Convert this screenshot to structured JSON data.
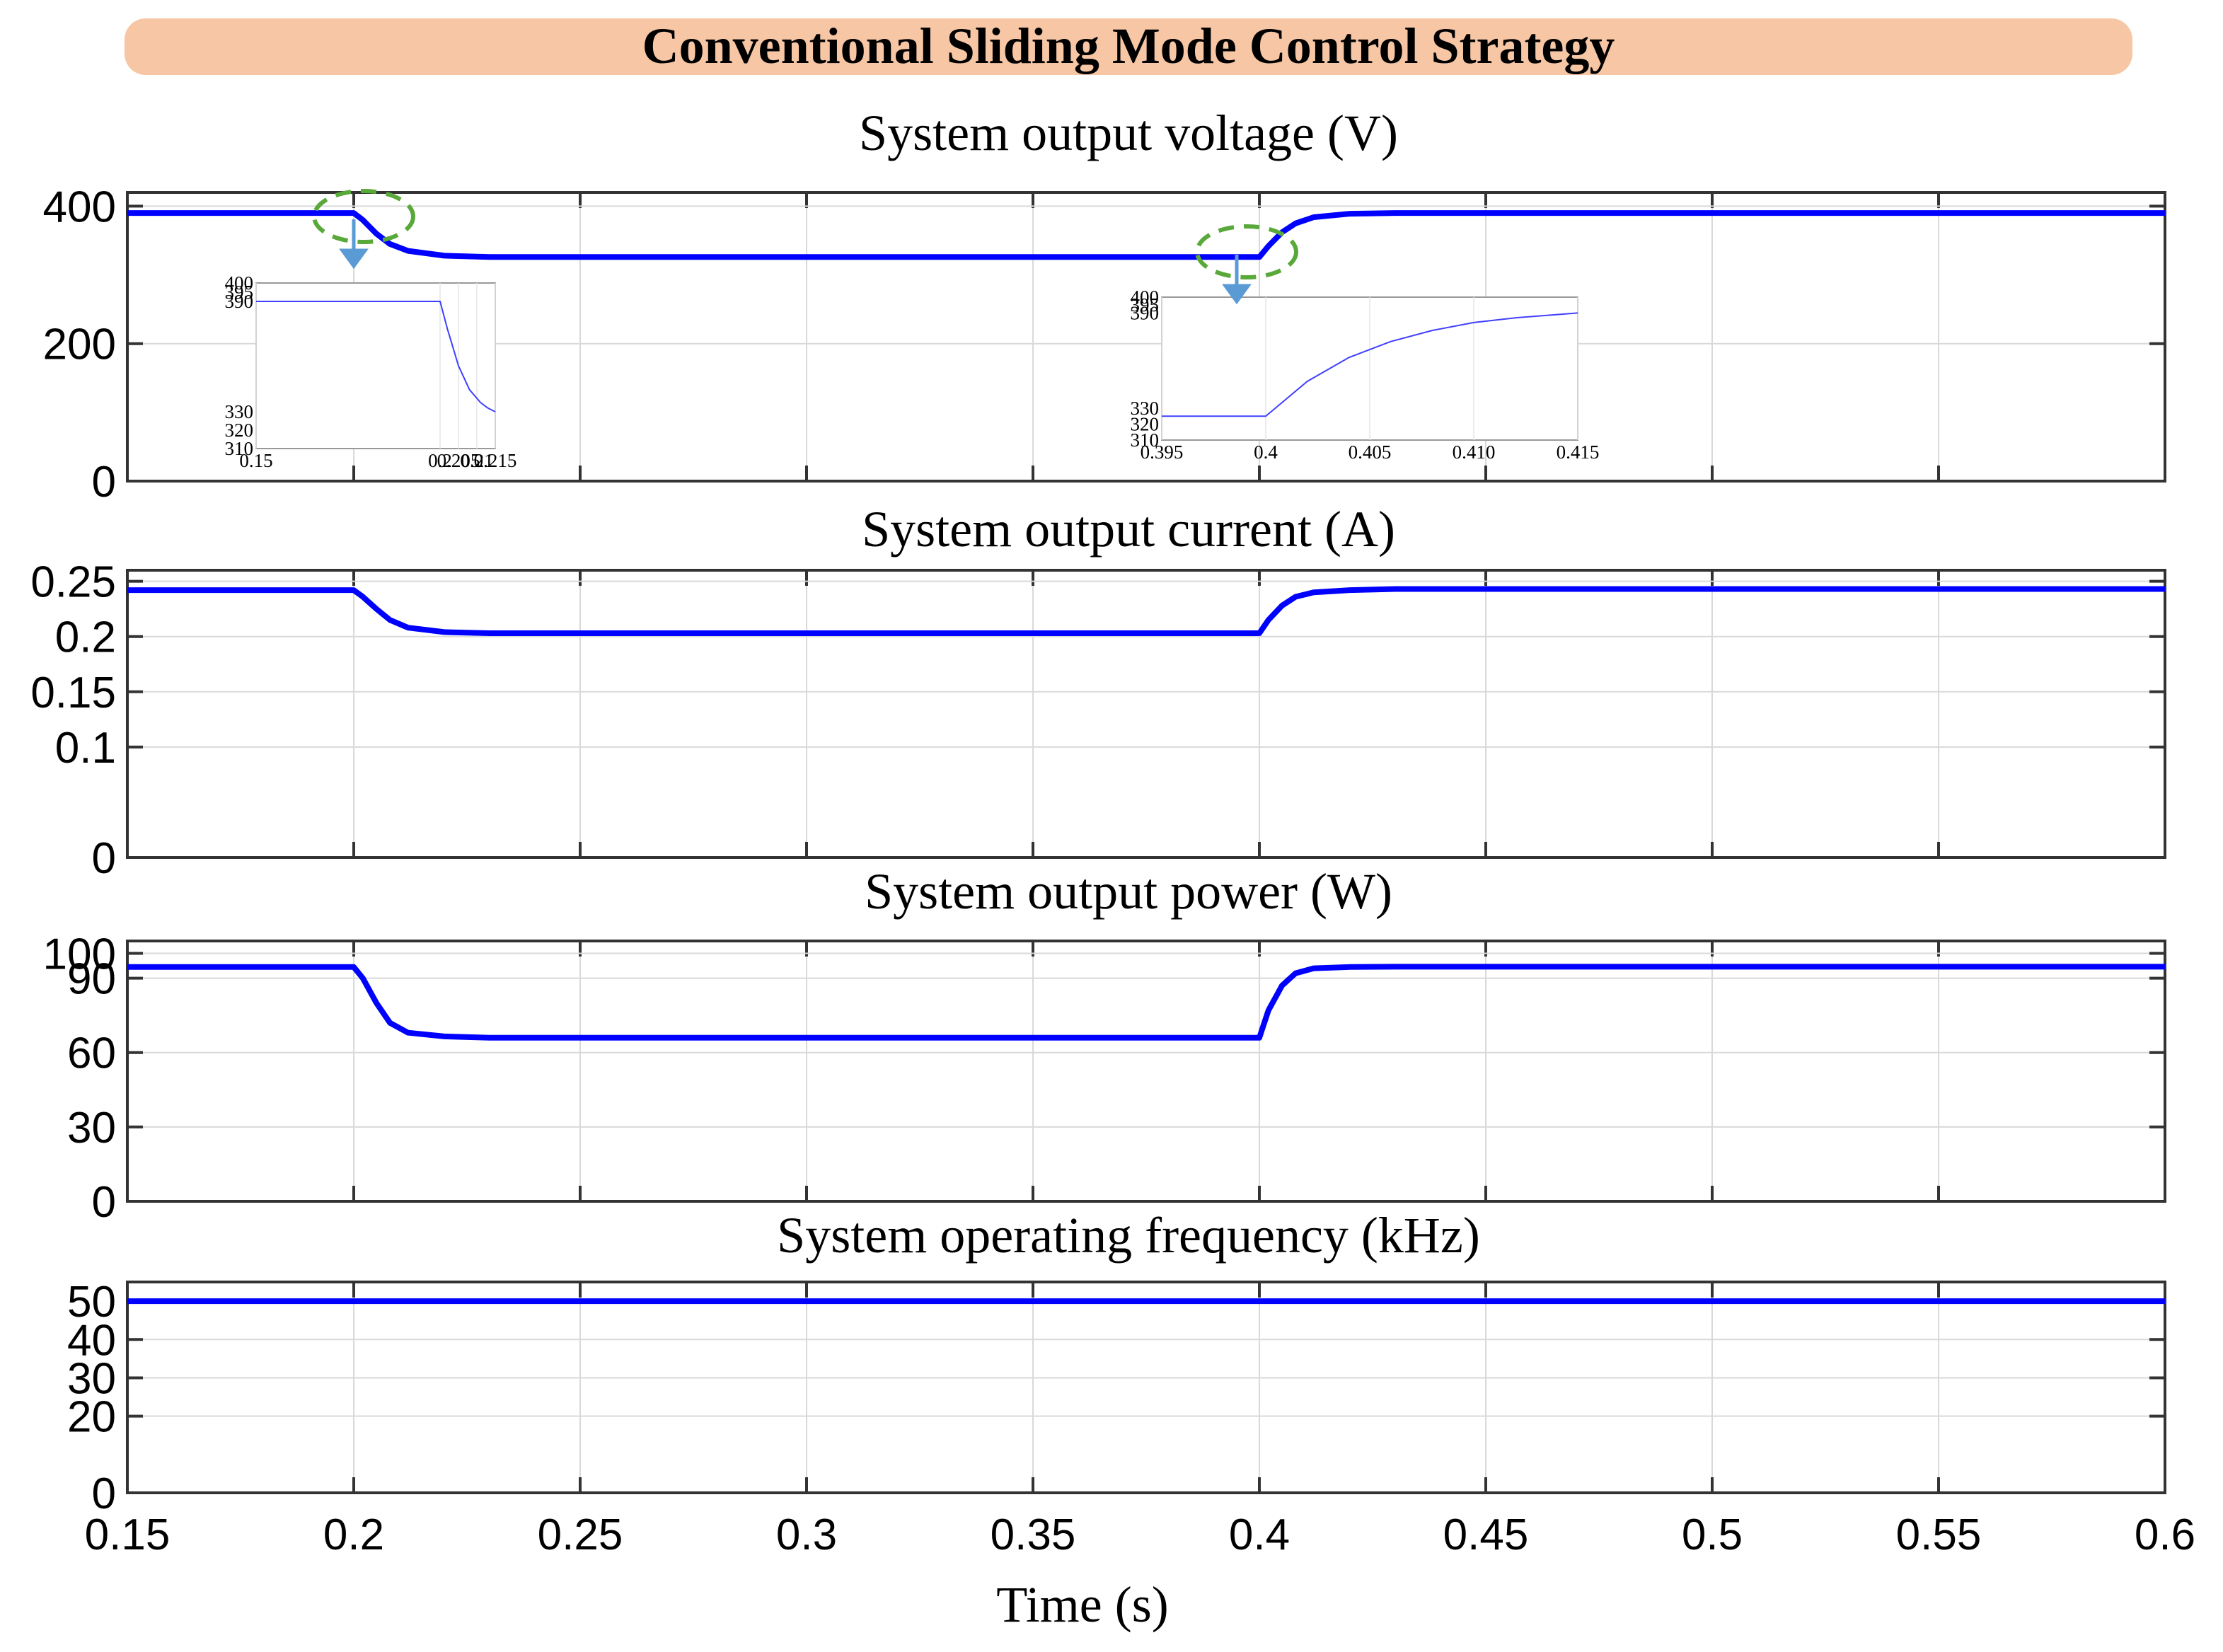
{
  "banner": {
    "title": "Conventional Sliding Mode Control Strategy",
    "color": "#f7c6a5"
  },
  "x_axis": {
    "label": "Time (s)",
    "range": [
      0.15,
      0.6
    ],
    "ticks": [
      0.15,
      0.2,
      0.25,
      0.3,
      0.35,
      0.4,
      0.45,
      0.5,
      0.55,
      0.6
    ],
    "tick_labels": [
      "0.15",
      "0.2",
      "0.25",
      "0.3",
      "0.35",
      "0.4",
      "0.45",
      "0.5",
      "0.55",
      "0.6"
    ]
  },
  "chart_data": [
    {
      "type": "line",
      "title": "System output voltage (V)",
      "ylim": [
        0,
        420
      ],
      "yticks": [
        0,
        200,
        400
      ],
      "ytick_labels": [
        "0",
        "200",
        "400"
      ],
      "grid": true,
      "series": [
        {
          "name": "Voltage",
          "color": "#0000ff",
          "x": [
            0.15,
            0.2,
            0.202,
            0.205,
            0.208,
            0.212,
            0.22,
            0.23,
            0.4,
            0.402,
            0.405,
            0.408,
            0.412,
            0.42,
            0.43,
            0.6
          ],
          "values": [
            390,
            390,
            380,
            360,
            345,
            335,
            328,
            326,
            326,
            342,
            362,
            375,
            384,
            389,
            390,
            390
          ]
        }
      ]
    },
    {
      "type": "line",
      "title": "System output current (A)",
      "ylim": [
        0,
        0.26
      ],
      "yticks": [
        0,
        0.1,
        0.15,
        0.2,
        0.25
      ],
      "ytick_labels": [
        "0",
        "0.1",
        "0.15",
        "0.2",
        "0.25"
      ],
      "grid": true,
      "series": [
        {
          "name": "Current",
          "color": "#0000ff",
          "x": [
            0.15,
            0.2,
            0.202,
            0.205,
            0.208,
            0.212,
            0.22,
            0.23,
            0.4,
            0.402,
            0.405,
            0.408,
            0.412,
            0.42,
            0.43,
            0.6
          ],
          "values": [
            0.242,
            0.242,
            0.236,
            0.225,
            0.215,
            0.208,
            0.204,
            0.203,
            0.203,
            0.215,
            0.228,
            0.236,
            0.24,
            0.242,
            0.243,
            0.243
          ]
        }
      ]
    },
    {
      "type": "line",
      "title": "System output power (W)",
      "ylim": [
        0,
        105
      ],
      "yticks": [
        0,
        30,
        60,
        90,
        100
      ],
      "ytick_labels": [
        "0",
        "30",
        "60",
        "90",
        "100"
      ],
      "grid": true,
      "series": [
        {
          "name": "Power",
          "color": "#0000ff",
          "x": [
            0.15,
            0.2,
            0.202,
            0.205,
            0.208,
            0.212,
            0.22,
            0.23,
            0.4,
            0.402,
            0.405,
            0.408,
            0.412,
            0.42,
            0.43,
            0.6
          ],
          "values": [
            94.5,
            94.5,
            90,
            80,
            72,
            68,
            66.5,
            66,
            66,
            77,
            87,
            92,
            94,
            94.5,
            94.6,
            94.6
          ]
        }
      ]
    },
    {
      "type": "line",
      "title": "System operating frequency (kHz)",
      "ylim": [
        0,
        55
      ],
      "yticks": [
        0,
        20,
        30,
        40,
        50
      ],
      "ytick_labels": [
        "0",
        "20",
        "30",
        "40",
        "50"
      ],
      "grid": true,
      "series": [
        {
          "name": "Frequency",
          "color": "#0000ff",
          "x": [
            0.15,
            0.6
          ],
          "values": [
            50,
            50
          ]
        }
      ]
    }
  ],
  "insets": [
    {
      "xlim": [
        0.15,
        0.215
      ],
      "xticks": [
        0.15,
        0.2,
        0.205,
        0.21,
        0.215
      ],
      "xtick_labels": [
        "0.15",
        "0.2",
        "0.205",
        "0.21",
        "0.215"
      ],
      "ylim": [
        310,
        400
      ],
      "yticks": [
        310,
        320,
        330,
        390,
        395,
        400
      ],
      "ytick_labels": [
        "310",
        "320",
        "330",
        "390",
        "395",
        "400"
      ],
      "x": [
        0.15,
        0.2,
        0.202,
        0.205,
        0.208,
        0.211,
        0.213,
        0.215
      ],
      "values": [
        390,
        390,
        375,
        355,
        342,
        335,
        332,
        330
      ]
    },
    {
      "xlim": [
        0.395,
        0.415
      ],
      "xticks": [
        0.395,
        0.4,
        0.405,
        0.41,
        0.415
      ],
      "xtick_labels": [
        "0.395",
        "0.4",
        "0.405",
        "0.410",
        "0.415"
      ],
      "ylim": [
        310,
        400
      ],
      "yticks": [
        310,
        320,
        330,
        390,
        395,
        400
      ],
      "ytick_labels": [
        "310",
        "320",
        "330",
        "390",
        "395",
        "400"
      ],
      "x": [
        0.395,
        0.4,
        0.401,
        0.402,
        0.404,
        0.406,
        0.408,
        0.41,
        0.412,
        0.415
      ],
      "values": [
        325,
        325,
        336,
        347,
        362,
        372,
        379,
        384,
        387,
        390
      ]
    }
  ]
}
